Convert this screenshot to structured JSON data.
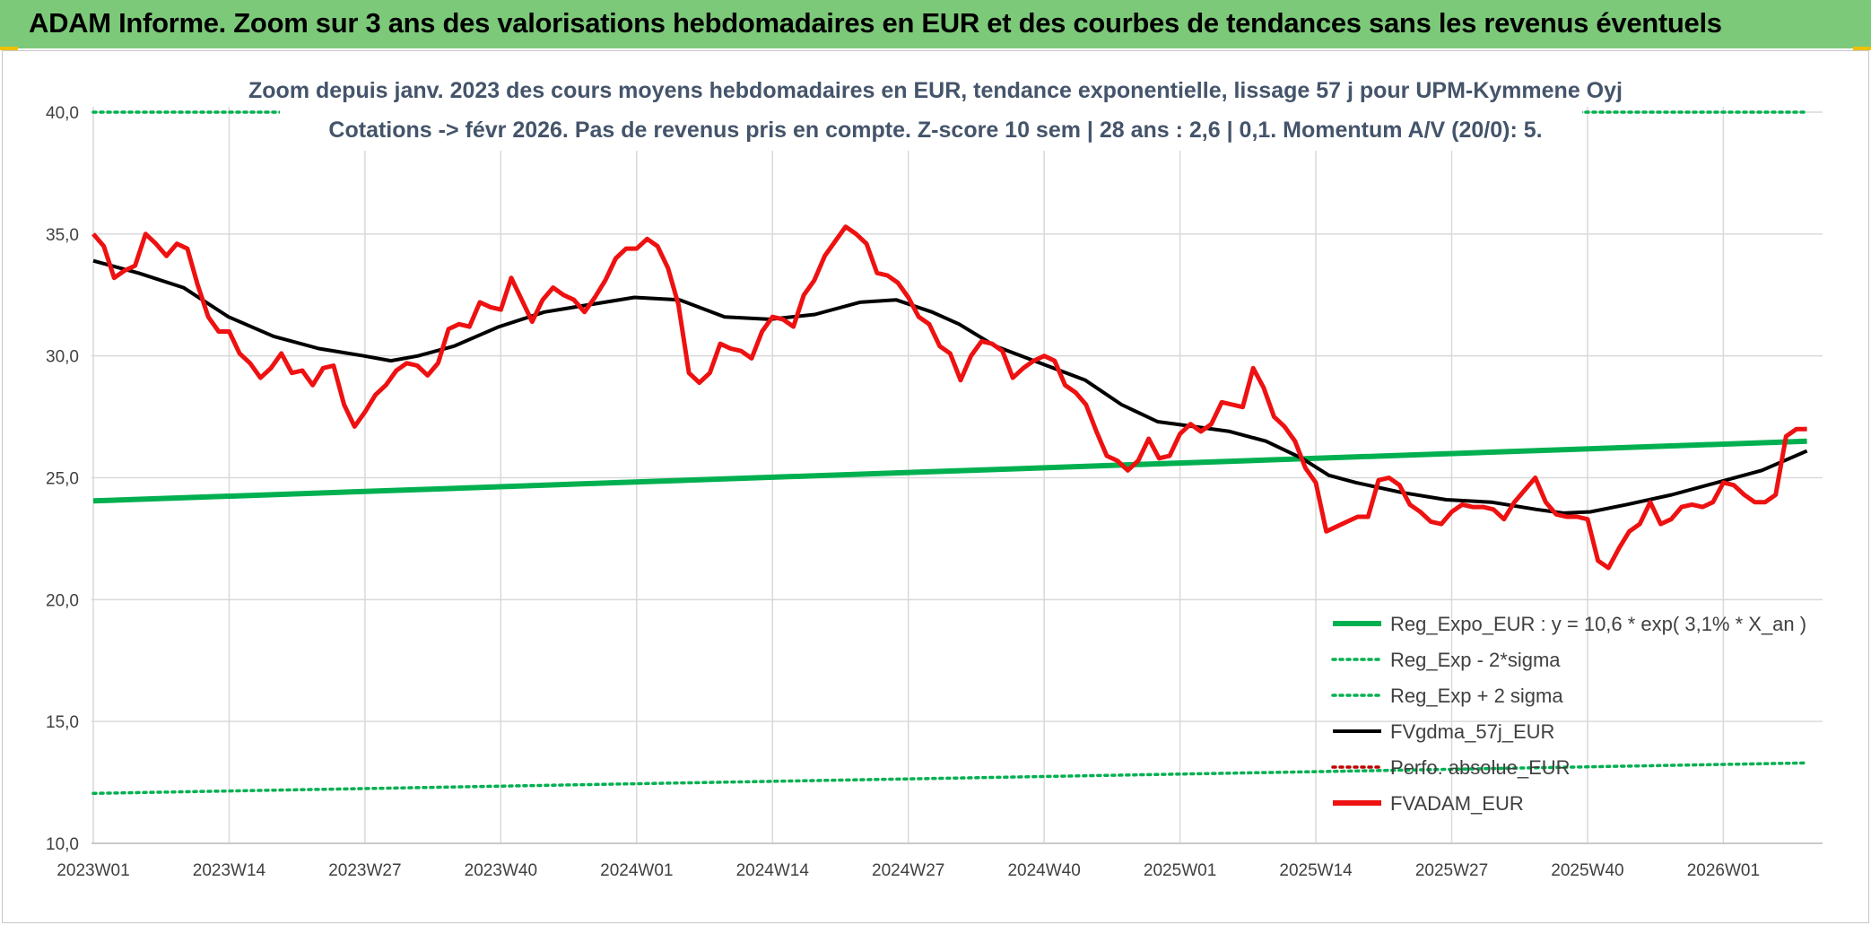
{
  "banner": {
    "title": "ADAM Informe. Zoom sur 3 ans des valorisations hebdomadaires en EUR et des courbes de tendances sans les revenus éventuels"
  },
  "colors": {
    "banner_bg": "#7dc97a",
    "reg_expo": "#00b050",
    "fvgdma": "#000000",
    "fvadam": "#ee1111",
    "perfo": "#c00000",
    "grid": "#d9d9d9",
    "title_text": "#44546a"
  },
  "chart_data": {
    "type": "line",
    "title_line1": "Zoom depuis janv. 2023 des cours moyens hebdomadaires en EUR, tendance exponentielle, lissage 57 j pour UPM-Kymmene Oyj",
    "title_line2": "Cotations -> févr 2026. Pas de revenus pris en compte. Z-score 10 sem | 28 ans : 2,6 | 0,1. Momentum A/V (20/0): 5.",
    "ylim": [
      10,
      40
    ],
    "yticks": [
      "10,0",
      "15,0",
      "20,0",
      "25,0",
      "30,0",
      "35,0",
      "40,0"
    ],
    "xlabels": [
      "2023W01",
      "2023W14",
      "2023W27",
      "2023W40",
      "2024W01",
      "2024W14",
      "2024W27",
      "2024W40",
      "2025W01",
      "2025W14",
      "2025W27",
      "2025W40",
      "2026W01"
    ],
    "n_weeks": 166,
    "grid": true,
    "legend_position": "bottom-right",
    "series": [
      {
        "name": "Reg_Expo_EUR : y = 10,6 * exp( 3,1% *  X_an )",
        "style": "solid-thick",
        "color": "#00b050",
        "start": 24.05,
        "end": 26.5
      },
      {
        "name": "Reg_Exp - 2*sigma",
        "style": "dotted",
        "color": "#00b050",
        "start": 12.05,
        "end": 13.3
      },
      {
        "name": "Reg_Exp + 2 sigma",
        "style": "dotted",
        "color": "#00b050",
        "start": 40.0,
        "end": 40.0
      },
      {
        "name": "FVgdma_57j_EUR",
        "style": "solid",
        "color": "#000000",
        "points": [
          [
            0,
            33.9
          ],
          [
            5,
            33.4
          ],
          [
            10,
            32.8
          ],
          [
            15,
            31.6
          ],
          [
            20,
            30.8
          ],
          [
            25,
            30.3
          ],
          [
            30,
            30.0
          ],
          [
            33,
            29.8
          ],
          [
            36,
            30.0
          ],
          [
            40,
            30.4
          ],
          [
            45,
            31.2
          ],
          [
            50,
            31.8
          ],
          [
            55,
            32.1
          ],
          [
            60,
            32.4
          ],
          [
            65,
            32.3
          ],
          [
            70,
            31.6
          ],
          [
            75,
            31.5
          ],
          [
            80,
            31.7
          ],
          [
            85,
            32.2
          ],
          [
            89,
            32.3
          ],
          [
            93,
            31.8
          ],
          [
            96,
            31.3
          ],
          [
            100,
            30.4
          ],
          [
            105,
            29.7
          ],
          [
            110,
            29.0
          ],
          [
            114,
            28.0
          ],
          [
            118,
            27.3
          ],
          [
            122,
            27.1
          ],
          [
            126,
            26.9
          ],
          [
            130,
            26.5
          ],
          [
            134,
            25.8
          ],
          [
            137,
            25.1
          ],
          [
            140,
            24.8
          ],
          [
            145,
            24.4
          ],
          [
            150,
            24.1
          ],
          [
            155,
            24.0
          ],
          [
            160,
            23.7
          ],
          [
            163,
            23.55
          ],
          [
            166,
            23.6
          ],
          [
            170,
            23.9
          ],
          [
            175,
            24.3
          ],
          [
            180,
            24.8
          ],
          [
            185,
            25.3
          ],
          [
            190,
            26.1
          ]
        ]
      },
      {
        "name": "Perfo. absolue_EUR",
        "style": "dotted",
        "color": "#c00000"
      },
      {
        "name": "FVADAM_EUR",
        "style": "solid-thick",
        "color": "#ee1111",
        "points": [
          [
            0,
            35.0
          ],
          [
            1,
            34.5
          ],
          [
            2,
            33.2
          ],
          [
            3,
            33.5
          ],
          [
            4,
            33.7
          ],
          [
            5,
            35.0
          ],
          [
            6,
            34.6
          ],
          [
            7,
            34.1
          ],
          [
            8,
            34.6
          ],
          [
            9,
            34.4
          ],
          [
            10,
            32.9
          ],
          [
            11,
            31.6
          ],
          [
            12,
            31.0
          ],
          [
            13,
            31.0
          ],
          [
            14,
            30.1
          ],
          [
            15,
            29.7
          ],
          [
            16,
            29.1
          ],
          [
            17,
            29.5
          ],
          [
            18,
            30.1
          ],
          [
            19,
            29.3
          ],
          [
            20,
            29.4
          ],
          [
            21,
            28.8
          ],
          [
            22,
            29.5
          ],
          [
            23,
            29.6
          ],
          [
            24,
            28.0
          ],
          [
            25,
            27.1
          ],
          [
            26,
            27.7
          ],
          [
            27,
            28.4
          ],
          [
            28,
            28.8
          ],
          [
            29,
            29.4
          ],
          [
            30,
            29.7
          ],
          [
            31,
            29.6
          ],
          [
            32,
            29.2
          ],
          [
            33,
            29.7
          ],
          [
            34,
            31.1
          ],
          [
            35,
            31.3
          ],
          [
            36,
            31.2
          ],
          [
            37,
            32.2
          ],
          [
            38,
            32.0
          ],
          [
            39,
            31.9
          ],
          [
            40,
            33.2
          ],
          [
            41,
            32.3
          ],
          [
            42,
            31.4
          ],
          [
            43,
            32.3
          ],
          [
            44,
            32.8
          ],
          [
            45,
            32.5
          ],
          [
            46,
            32.3
          ],
          [
            47,
            31.8
          ],
          [
            48,
            32.4
          ],
          [
            49,
            33.1
          ],
          [
            50,
            34.0
          ],
          [
            51,
            34.4
          ],
          [
            52,
            34.4
          ],
          [
            53,
            34.8
          ],
          [
            54,
            34.5
          ],
          [
            55,
            33.6
          ],
          [
            56,
            32.1
          ],
          [
            57,
            29.3
          ],
          [
            58,
            28.9
          ],
          [
            59,
            29.3
          ],
          [
            60,
            30.5
          ],
          [
            61,
            30.3
          ],
          [
            62,
            30.2
          ],
          [
            63,
            29.9
          ],
          [
            64,
            31.0
          ],
          [
            65,
            31.6
          ],
          [
            66,
            31.5
          ],
          [
            67,
            31.2
          ],
          [
            68,
            32.5
          ],
          [
            69,
            33.1
          ],
          [
            70,
            34.1
          ],
          [
            71,
            34.7
          ],
          [
            72,
            35.3
          ],
          [
            73,
            35.0
          ],
          [
            74,
            34.6
          ],
          [
            75,
            33.4
          ],
          [
            76,
            33.3
          ],
          [
            77,
            33.0
          ],
          [
            78,
            32.4
          ],
          [
            79,
            31.6
          ],
          [
            80,
            31.3
          ],
          [
            81,
            30.4
          ],
          [
            82,
            30.1
          ],
          [
            83,
            29.0
          ],
          [
            84,
            30.0
          ],
          [
            85,
            30.6
          ],
          [
            86,
            30.5
          ],
          [
            87,
            30.2
          ],
          [
            88,
            29.1
          ],
          [
            89,
            29.5
          ],
          [
            90,
            29.8
          ],
          [
            91,
            30.0
          ],
          [
            92,
            29.8
          ],
          [
            93,
            28.8
          ],
          [
            94,
            28.5
          ],
          [
            95,
            28.0
          ],
          [
            96,
            26.9
          ],
          [
            97,
            25.9
          ],
          [
            98,
            25.7
          ],
          [
            99,
            25.3
          ],
          [
            100,
            25.7
          ],
          [
            101,
            26.6
          ],
          [
            102,
            25.8
          ],
          [
            103,
            25.9
          ],
          [
            104,
            26.8
          ],
          [
            105,
            27.2
          ],
          [
            106,
            26.9
          ],
          [
            107,
            27.2
          ],
          [
            108,
            28.1
          ],
          [
            109,
            28.0
          ],
          [
            110,
            27.9
          ],
          [
            111,
            29.5
          ],
          [
            112,
            28.7
          ],
          [
            113,
            27.5
          ],
          [
            114,
            27.1
          ],
          [
            115,
            26.5
          ],
          [
            116,
            25.4
          ],
          [
            117,
            24.8
          ],
          [
            118,
            22.8
          ],
          [
            119,
            23.0
          ],
          [
            120,
            23.2
          ],
          [
            121,
            23.4
          ],
          [
            122,
            23.4
          ],
          [
            123,
            24.9
          ],
          [
            124,
            25.0
          ],
          [
            125,
            24.7
          ],
          [
            126,
            23.9
          ],
          [
            127,
            23.6
          ],
          [
            128,
            23.2
          ],
          [
            129,
            23.1
          ],
          [
            130,
            23.6
          ],
          [
            131,
            23.9
          ],
          [
            132,
            23.8
          ],
          [
            133,
            23.8
          ],
          [
            134,
            23.7
          ],
          [
            135,
            23.3
          ],
          [
            136,
            24.0
          ],
          [
            137,
            24.5
          ],
          [
            138,
            25.0
          ],
          [
            139,
            24.0
          ],
          [
            140,
            23.5
          ],
          [
            141,
            23.4
          ],
          [
            142,
            23.4
          ],
          [
            143,
            23.3
          ],
          [
            144,
            21.6
          ],
          [
            145,
            21.3
          ],
          [
            146,
            22.1
          ],
          [
            147,
            22.8
          ],
          [
            148,
            23.1
          ],
          [
            149,
            24.0
          ],
          [
            150,
            23.1
          ],
          [
            151,
            23.3
          ],
          [
            152,
            23.8
          ],
          [
            153,
            23.9
          ],
          [
            154,
            23.8
          ],
          [
            155,
            24.0
          ],
          [
            156,
            24.8
          ],
          [
            157,
            24.7
          ],
          [
            158,
            24.3
          ],
          [
            159,
            24.0
          ],
          [
            160,
            24.0
          ],
          [
            161,
            24.3
          ],
          [
            162,
            26.7
          ],
          [
            163,
            27.0
          ],
          [
            164,
            27.0
          ]
        ]
      }
    ]
  }
}
